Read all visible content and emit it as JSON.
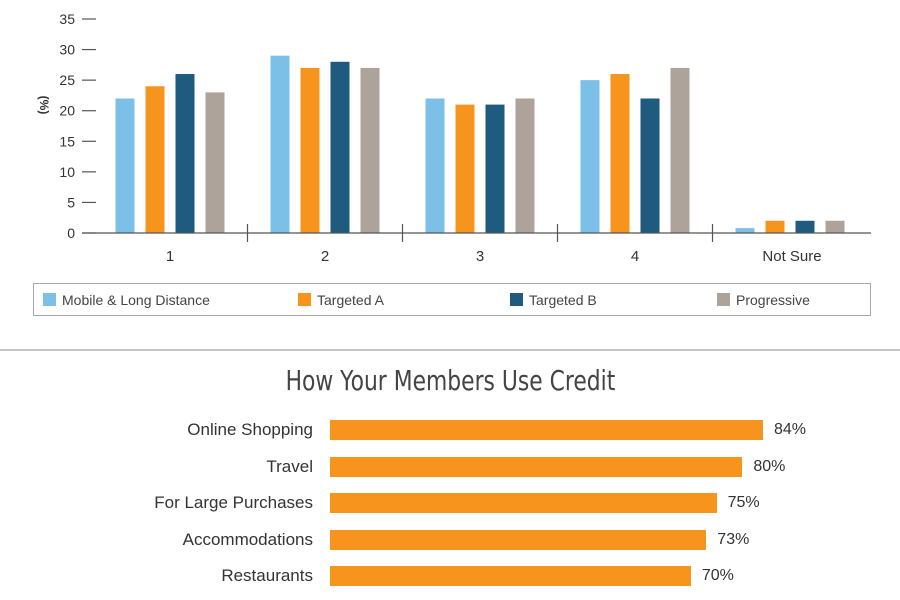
{
  "chart_data": [
    {
      "type": "bar",
      "title": "",
      "xlabel": "",
      "ylabel": "(%)",
      "ylim": [
        0,
        35
      ],
      "yticks": [
        0,
        5,
        10,
        15,
        20,
        25,
        30,
        35
      ],
      "categories": [
        "1",
        "2",
        "3",
        "4",
        "Not Sure"
      ],
      "series": [
        {
          "name": "Mobile & Long Distance",
          "color": "#7cc0e8",
          "values": [
            22,
            29,
            22,
            25,
            0.8
          ]
        },
        {
          "name": "Targeted A",
          "color": "#f7941d",
          "values": [
            24,
            27,
            21,
            26,
            2
          ]
        },
        {
          "name": "Targeted B",
          "color": "#1f5a7f",
          "values": [
            26,
            28,
            21,
            22,
            2
          ]
        },
        {
          "name": "Progressive",
          "color": "#ada39a",
          "values": [
            23,
            27,
            22,
            27,
            2
          ]
        }
      ],
      "legend": "bottom",
      "grid": false
    },
    {
      "type": "bar",
      "orientation": "horizontal",
      "title": "How Your Members Use Credit",
      "color": "#f7941d",
      "xlim": [
        0,
        100
      ],
      "categories": [
        "Online Shopping",
        "Travel",
        "For Large Purchases",
        "Accommodations",
        "Restaurants"
      ],
      "values": [
        84,
        80,
        75,
        73,
        70
      ],
      "value_labels": [
        "84%",
        "80%",
        "75%",
        "73%",
        "70%"
      ]
    }
  ]
}
